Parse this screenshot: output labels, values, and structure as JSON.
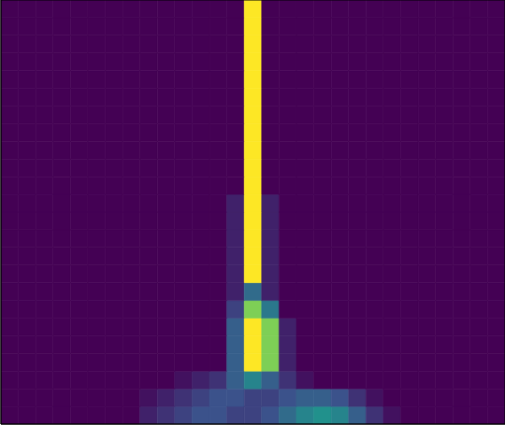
{
  "chart_data": {
    "type": "heatmap",
    "xlim": [
      0,
      29
    ],
    "ylim": [
      0,
      24
    ],
    "zlim": [
      0,
      1
    ],
    "tick_labels": false,
    "z": [
      [
        0,
        0,
        0,
        0,
        0,
        0,
        0,
        0,
        0.1,
        0.15,
        0.2,
        0.25,
        0.25,
        0.2,
        0.2,
        0.25,
        0.35,
        0.45,
        0.5,
        0.45,
        0.3,
        0.15,
        0.05,
        0,
        0,
        0,
        0,
        0,
        0
      ],
      [
        0,
        0,
        0,
        0,
        0,
        0,
        0,
        0,
        0.05,
        0.1,
        0.15,
        0.2,
        0.25,
        0.25,
        0.2,
        0.2,
        0.25,
        0.3,
        0.3,
        0.25,
        0.15,
        0.05,
        0,
        0,
        0,
        0,
        0,
        0,
        0
      ],
      [
        0,
        0,
        0,
        0,
        0,
        0,
        0,
        0,
        0,
        0,
        0.05,
        0.1,
        0.15,
        0.3,
        0.45,
        0.3,
        0.15,
        0.05,
        0,
        0,
        0,
        0,
        0,
        0,
        0,
        0,
        0,
        0,
        0
      ],
      [
        0,
        0,
        0,
        0,
        0,
        0,
        0,
        0,
        0,
        0,
        0,
        0,
        0,
        0.3,
        1,
        0.8,
        0.1,
        0,
        0,
        0,
        0,
        0,
        0,
        0,
        0,
        0,
        0,
        0,
        0
      ],
      [
        0,
        0,
        0,
        0,
        0,
        0,
        0,
        0,
        0,
        0,
        0,
        0,
        0,
        0.3,
        1,
        0.8,
        0.1,
        0,
        0,
        0,
        0,
        0,
        0,
        0,
        0,
        0,
        0,
        0,
        0
      ],
      [
        0,
        0,
        0,
        0,
        0,
        0,
        0,
        0,
        0,
        0,
        0,
        0,
        0,
        0.3,
        1,
        0.8,
        0.1,
        0,
        0,
        0,
        0,
        0,
        0,
        0,
        0,
        0,
        0,
        0,
        0
      ],
      [
        0,
        0,
        0,
        0,
        0,
        0,
        0,
        0,
        0,
        0,
        0,
        0,
        0,
        0.2,
        0.8,
        0.4,
        0,
        0,
        0,
        0,
        0,
        0,
        0,
        0,
        0,
        0,
        0,
        0,
        0
      ],
      [
        0,
        0,
        0,
        0,
        0,
        0,
        0,
        0,
        0,
        0,
        0,
        0,
        0,
        0.1,
        0.35,
        0.1,
        0,
        0,
        0,
        0,
        0,
        0,
        0,
        0,
        0,
        0,
        0,
        0,
        0
      ],
      [
        0,
        0,
        0,
        0,
        0,
        0,
        0,
        0,
        0,
        0,
        0,
        0,
        0,
        0.1,
        1,
        0.1,
        0,
        0,
        0,
        0,
        0,
        0,
        0,
        0,
        0,
        0,
        0,
        0,
        0
      ],
      [
        0,
        0,
        0,
        0,
        0,
        0,
        0,
        0,
        0,
        0,
        0,
        0,
        0,
        0.1,
        1,
        0.1,
        0,
        0,
        0,
        0,
        0,
        0,
        0,
        0,
        0,
        0,
        0,
        0,
        0
      ],
      [
        0,
        0,
        0,
        0,
        0,
        0,
        0,
        0,
        0,
        0,
        0,
        0,
        0,
        0.1,
        1,
        0.1,
        0,
        0,
        0,
        0,
        0,
        0,
        0,
        0,
        0,
        0,
        0,
        0,
        0
      ],
      [
        0,
        0,
        0,
        0,
        0,
        0,
        0,
        0,
        0,
        0,
        0,
        0,
        0,
        0.1,
        1,
        0.1,
        0,
        0,
        0,
        0,
        0,
        0,
        0,
        0,
        0,
        0,
        0,
        0,
        0
      ],
      [
        0,
        0,
        0,
        0,
        0,
        0,
        0,
        0,
        0,
        0,
        0,
        0,
        0,
        0.1,
        1,
        0.1,
        0,
        0,
        0,
        0,
        0,
        0,
        0,
        0,
        0,
        0,
        0,
        0,
        0
      ],
      [
        0,
        0,
        0,
        0,
        0,
        0,
        0,
        0,
        0,
        0,
        0,
        0,
        0,
        0,
        1,
        0,
        0,
        0,
        0,
        0,
        0,
        0,
        0,
        0,
        0,
        0,
        0,
        0,
        0
      ],
      [
        0,
        0,
        0,
        0,
        0,
        0,
        0,
        0,
        0,
        0,
        0,
        0,
        0,
        0,
        1,
        0,
        0,
        0,
        0,
        0,
        0,
        0,
        0,
        0,
        0,
        0,
        0,
        0,
        0
      ],
      [
        0,
        0,
        0,
        0,
        0,
        0,
        0,
        0,
        0,
        0,
        0,
        0,
        0,
        0,
        1,
        0,
        0,
        0,
        0,
        0,
        0,
        0,
        0,
        0,
        0,
        0,
        0,
        0,
        0
      ],
      [
        0,
        0,
        0,
        0,
        0,
        0,
        0,
        0,
        0,
        0,
        0,
        0,
        0,
        0,
        1,
        0,
        0,
        0,
        0,
        0,
        0,
        0,
        0,
        0,
        0,
        0,
        0,
        0,
        0
      ],
      [
        0,
        0,
        0,
        0,
        0,
        0,
        0,
        0,
        0,
        0,
        0,
        0,
        0,
        0,
        1,
        0,
        0,
        0,
        0,
        0,
        0,
        0,
        0,
        0,
        0,
        0,
        0,
        0,
        0
      ],
      [
        0,
        0,
        0,
        0,
        0,
        0,
        0,
        0,
        0,
        0,
        0,
        0,
        0,
        0,
        1,
        0,
        0,
        0,
        0,
        0,
        0,
        0,
        0,
        0,
        0,
        0,
        0,
        0,
        0
      ],
      [
        0,
        0,
        0,
        0,
        0,
        0,
        0,
        0,
        0,
        0,
        0,
        0,
        0,
        0,
        1,
        0,
        0,
        0,
        0,
        0,
        0,
        0,
        0,
        0,
        0,
        0,
        0,
        0,
        0
      ],
      [
        0,
        0,
        0,
        0,
        0,
        0,
        0,
        0,
        0,
        0,
        0,
        0,
        0,
        0,
        1,
        0,
        0,
        0,
        0,
        0,
        0,
        0,
        0,
        0,
        0,
        0,
        0,
        0,
        0
      ],
      [
        0,
        0,
        0,
        0,
        0,
        0,
        0,
        0,
        0,
        0,
        0,
        0,
        0,
        0,
        1,
        0,
        0,
        0,
        0,
        0,
        0,
        0,
        0,
        0,
        0,
        0,
        0,
        0,
        0
      ],
      [
        0,
        0,
        0,
        0,
        0,
        0,
        0,
        0,
        0,
        0,
        0,
        0,
        0,
        0,
        1,
        0,
        0,
        0,
        0,
        0,
        0,
        0,
        0,
        0,
        0,
        0,
        0,
        0,
        0
      ],
      [
        0,
        0,
        0,
        0,
        0,
        0,
        0,
        0,
        0,
        0,
        0,
        0,
        0,
        0,
        1,
        0,
        0,
        0,
        0,
        0,
        0,
        0,
        0,
        0,
        0,
        0,
        0,
        0,
        0
      ]
    ]
  }
}
